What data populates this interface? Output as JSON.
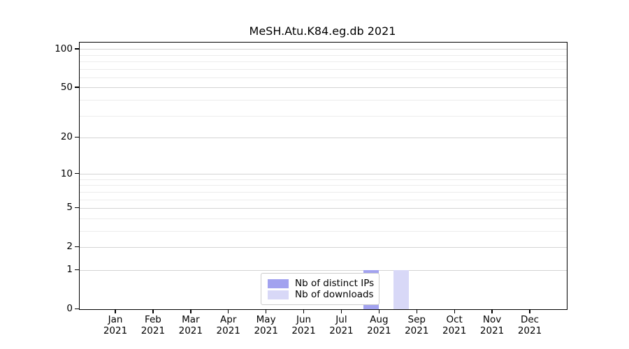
{
  "chart_data": {
    "type": "bar",
    "title": "MeSH.Atu.K84.eg.db 2021",
    "categories": [
      "Jan 2021",
      "Feb 2021",
      "Mar 2021",
      "Apr 2021",
      "May 2021",
      "Jun 2021",
      "Jul 2021",
      "Aug 2021",
      "Sep 2021",
      "Oct 2021",
      "Nov 2021",
      "Dec 2021"
    ],
    "series": [
      {
        "name": "Nb of distinct IPs",
        "color": "#a2a2ef",
        "values": [
          0,
          0,
          0,
          0,
          0,
          0,
          0,
          1,
          0,
          0,
          0,
          0
        ]
      },
      {
        "name": "Nb of downloads",
        "color": "#d8d8f7",
        "values": [
          0,
          0,
          0,
          0,
          0,
          0,
          0,
          1,
          0,
          0,
          0,
          0
        ]
      }
    ],
    "xlabel": "",
    "ylabel": "",
    "y_scale": "log1p",
    "y_major_ticks": [
      0,
      1,
      2,
      5,
      10,
      20,
      50,
      100
    ],
    "y_minor_ticks": [
      3,
      4,
      6,
      7,
      8,
      9,
      30,
      40,
      60,
      70,
      80,
      90
    ],
    "ylim": [
      0,
      113
    ],
    "grid": "horizontal-major-and-minor",
    "legend_position": "lower-center-inside"
  },
  "colors": {
    "background": "#ffffff",
    "axis": "#000000",
    "grid_major": "#d4d4d4",
    "grid_minor": "#ececec",
    "legend_border": "#cccccc"
  }
}
